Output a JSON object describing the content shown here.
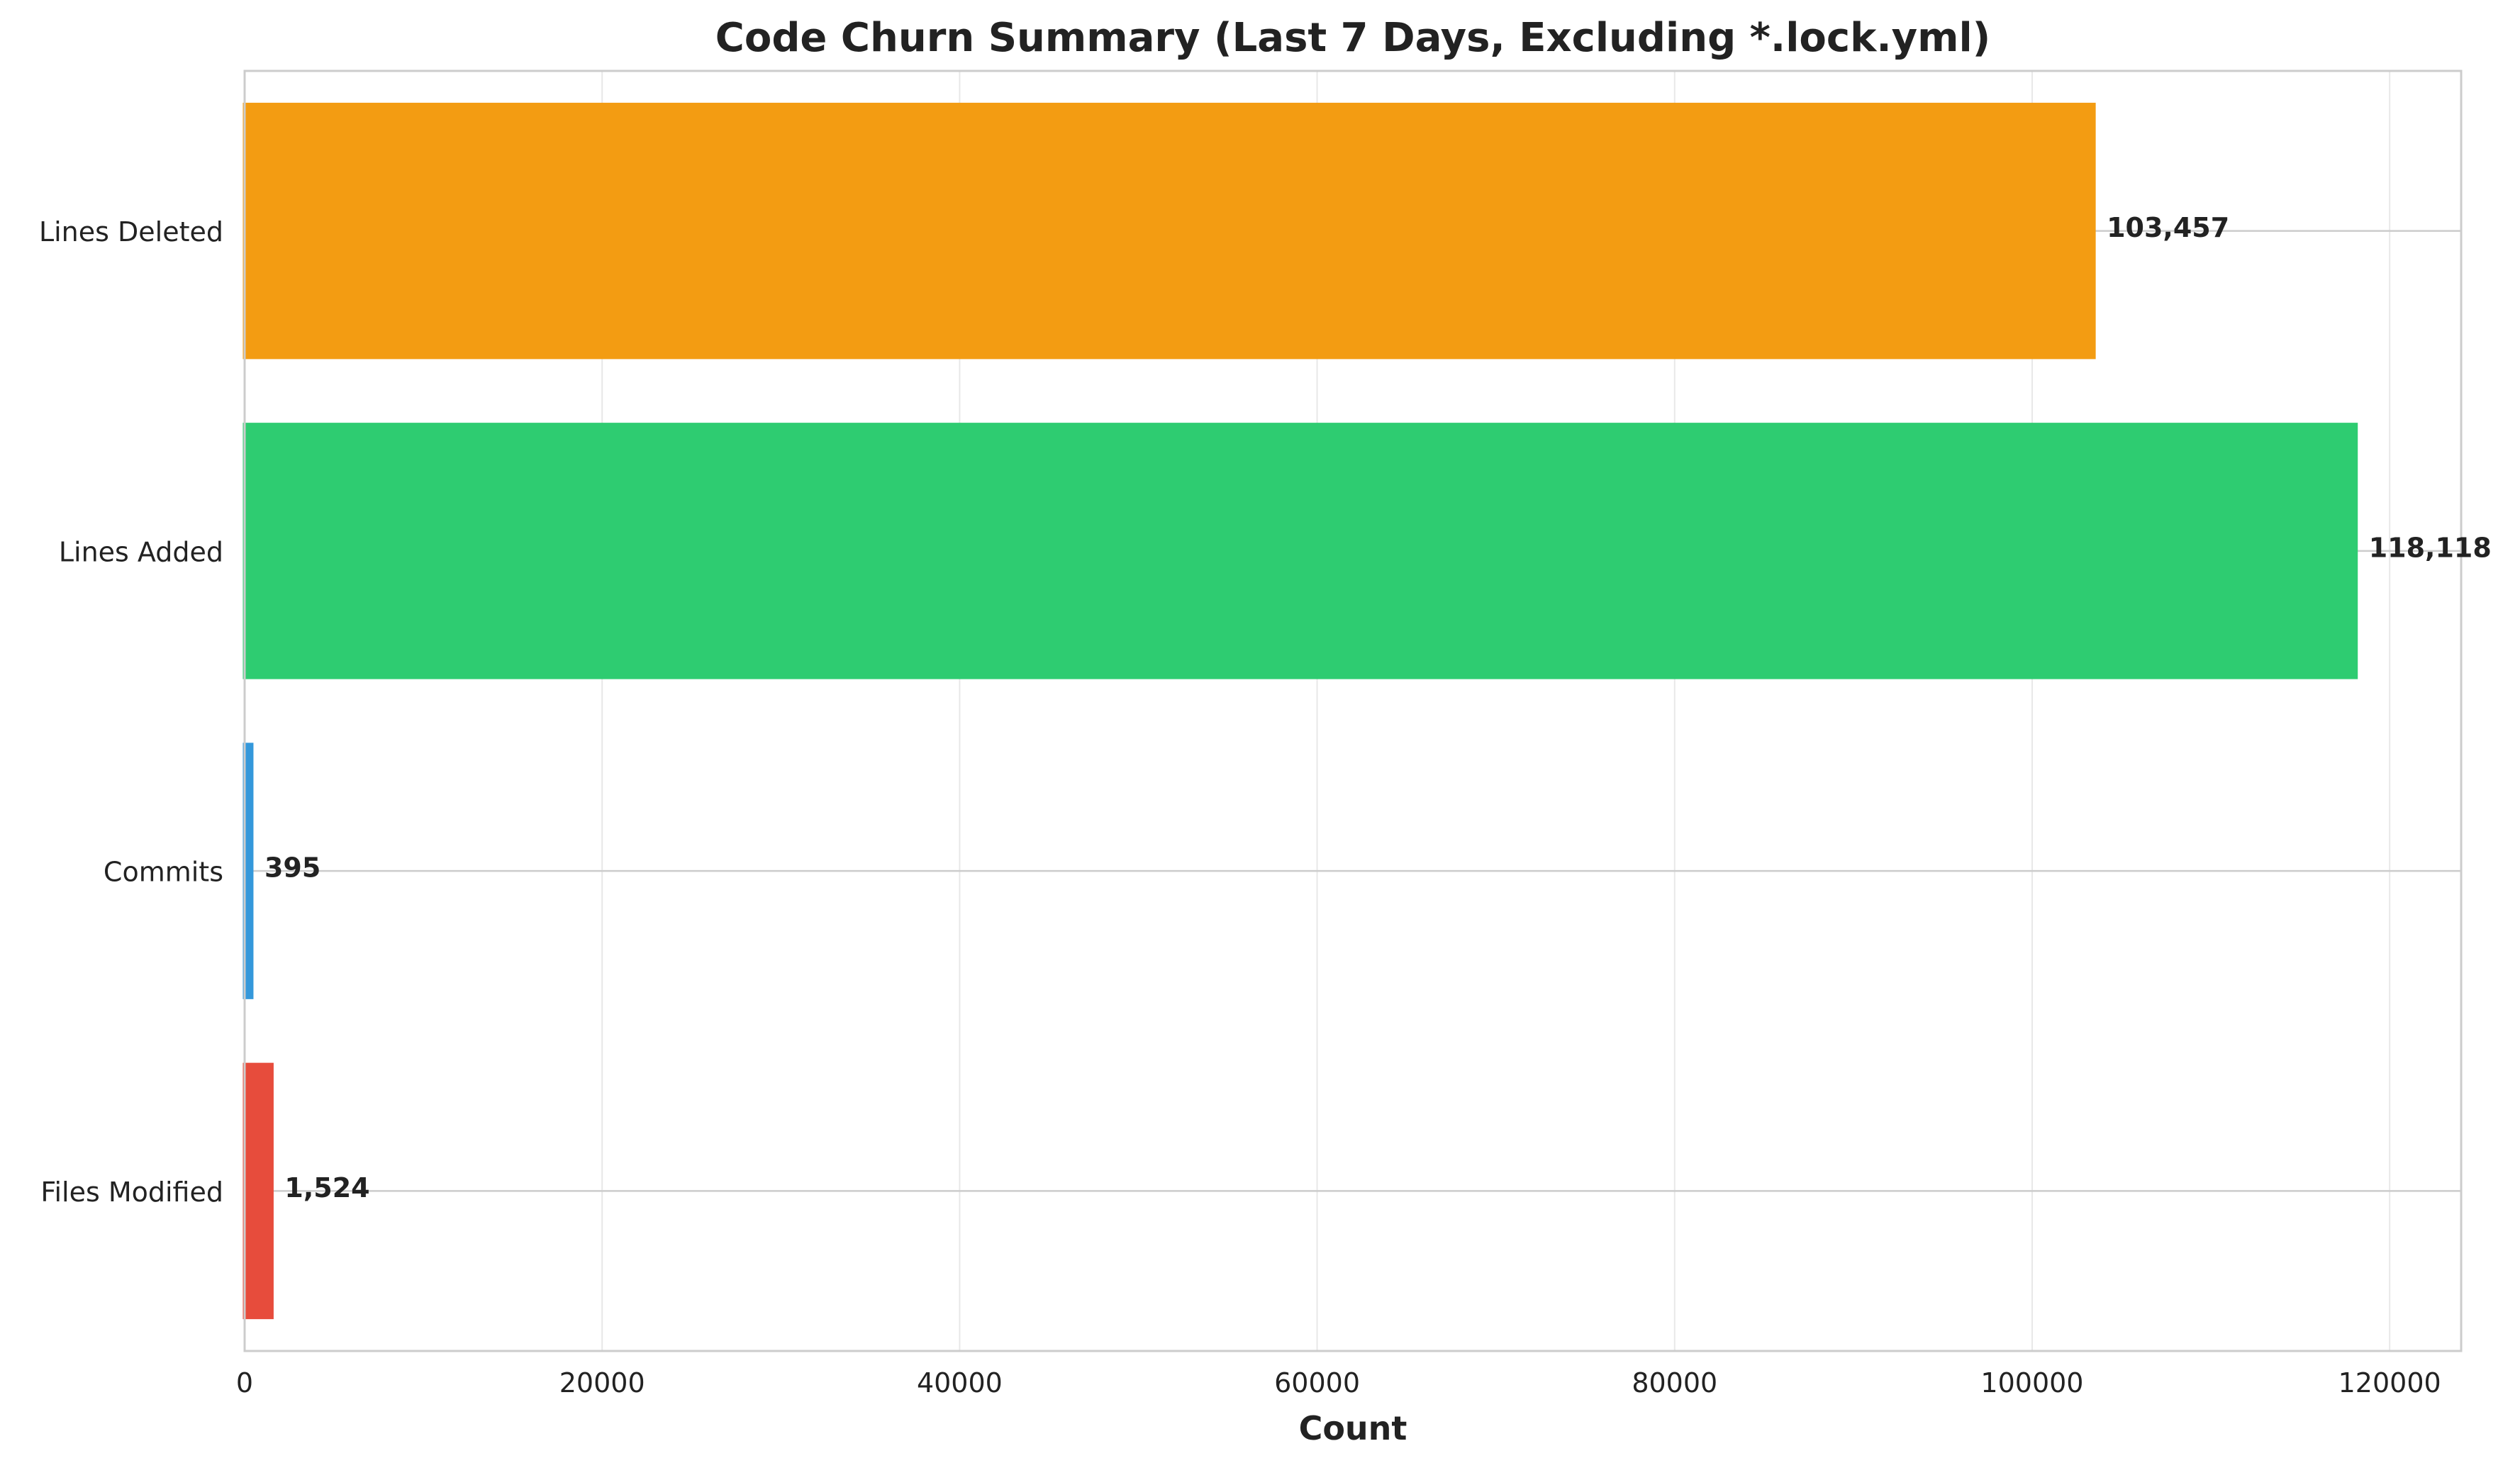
{
  "chart_data": {
    "type": "bar",
    "orientation": "horizontal",
    "title": "Code Churn Summary (Last 7 Days, Excluding *.lock.yml)",
    "xlabel": "Count",
    "ylabel": "",
    "xlim": [
      0,
      124000
    ],
    "xticks": [
      0,
      20000,
      40000,
      60000,
      80000,
      100000,
      120000
    ],
    "xtick_labels": [
      "0",
      "20000",
      "40000",
      "60000",
      "80000",
      "100000",
      "120000"
    ],
    "grid": true,
    "categories": [
      "Files Modified",
      "Commits",
      "Lines Added",
      "Lines Deleted"
    ],
    "values": [
      1524,
      395,
      118118,
      103457
    ],
    "value_labels": [
      "1,524",
      "395",
      "118,118",
      "103,457"
    ],
    "colors": [
      "#e74c3c",
      "#3498db",
      "#2ecc71",
      "#f39c12"
    ]
  }
}
